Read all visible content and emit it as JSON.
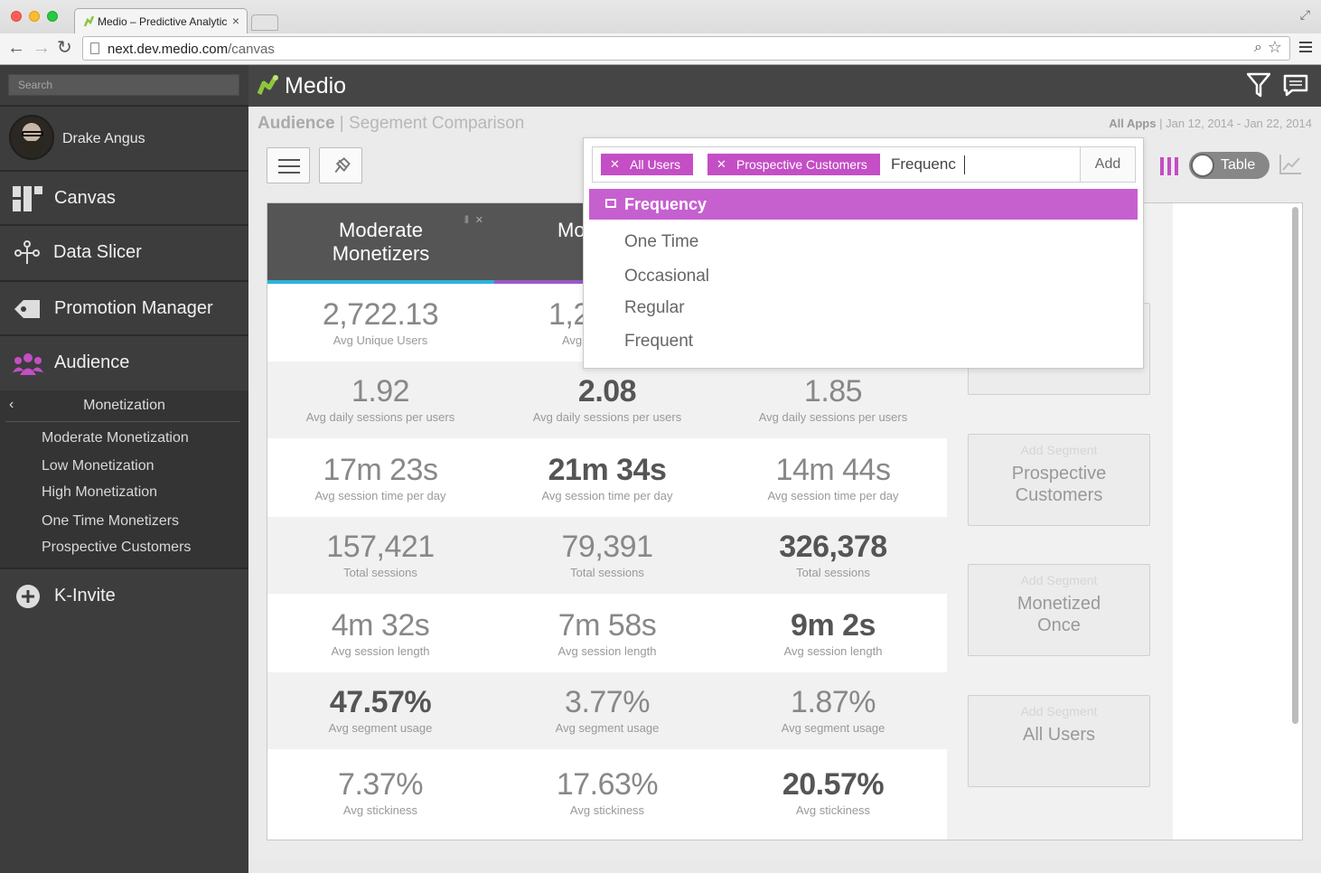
{
  "browser": {
    "tab_title": "Medio – Predictive Analytic",
    "url_host": "next.dev.medio.com",
    "url_path": "/canvas"
  },
  "sidebar": {
    "search_placeholder": "Search",
    "user_name": "Drake Angus",
    "nav": {
      "canvas": "Canvas",
      "data_slicer": "Data Slicer",
      "promotion_manager": "Promotion Manager",
      "audience": "Audience",
      "k_invite": "K-Invite"
    },
    "submenu": {
      "title": "Monetization",
      "items": [
        "Moderate Monetization",
        "Low Monetization",
        "High Monetization",
        "One Time Monetizers",
        "Prospective Customers"
      ]
    }
  },
  "header": {
    "app_title": "Medio"
  },
  "content": {
    "breadcrumb_section": "Audience",
    "breadcrumb_sep": " | ",
    "breadcrumb_page": "Segement Comparison",
    "scope": "All Apps",
    "date_range": " | Jan 12, 2014 - Jan 22, 2014",
    "view_toggle_label": "Table"
  },
  "columns": [
    {
      "title_line1": "Moderate",
      "title_line2": "Monetizers",
      "accent": "#2bb5d8"
    },
    {
      "title_line1": "Mo",
      "title_line2": "",
      "accent": "#9b59c9"
    },
    {
      "title_line1": "",
      "title_line2": "",
      "accent": "#555555"
    }
  ],
  "metrics": [
    {
      "label": "Avg Unique Users",
      "values": [
        "2,722.13",
        "1,2",
        ""
      ],
      "labels_visible": [
        true,
        false,
        false
      ]
    },
    {
      "label": "Avg daily sessions per users",
      "values": [
        "1.92",
        "2.08",
        "1.85"
      ]
    },
    {
      "label": "Avg session time per day",
      "values": [
        "17m 23s",
        "21m 34s",
        "14m 44s"
      ]
    },
    {
      "label": "Total sessions",
      "values": [
        "157,421",
        "79,391",
        "326,378"
      ]
    },
    {
      "label": "Avg session length",
      "values": [
        "4m 32s",
        "7m 58s",
        "9m 2s"
      ]
    },
    {
      "label": "Avg segment usage",
      "values": [
        "47.57%",
        "3.77%",
        "1.87%"
      ]
    },
    {
      "label": "Avg stickiness",
      "values": [
        "7.37%",
        "17.63%",
        "20.57%"
      ]
    }
  ],
  "metric_row0_label_partial": "Avg",
  "add_segments": {
    "kicker": "Add Segment",
    "cards": [
      {
        "line1": "Prospective",
        "line2": "Customers"
      },
      {
        "line1": "Monetized",
        "line2": "Once"
      },
      {
        "line1": "All Users",
        "line2": ""
      }
    ]
  },
  "dropdown": {
    "tags": [
      "All Users",
      "Prospective Customers"
    ],
    "input_value": "Frequenc",
    "add_label": "Add",
    "group": "Frequency",
    "options": [
      "One Time",
      "Occasional",
      "Regular",
      "Frequent"
    ]
  },
  "colors": {
    "accent_purple": "#c44ec5",
    "sidebar_bg": "#3d3d3d",
    "logo_green": "#8cc63f"
  }
}
